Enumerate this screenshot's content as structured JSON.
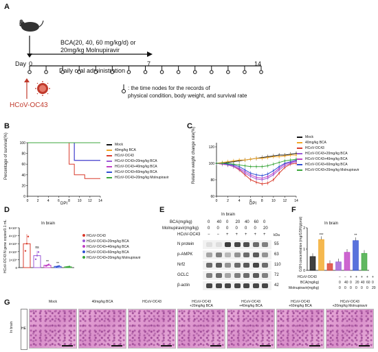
{
  "panels": {
    "A": {
      "letter": "A",
      "treatment_line1": "BCA(20, 40, 60 mg/kg/d) or",
      "treatment_line2": "20mg/kg Molnupiravir",
      "daily": "Daily oral administration",
      "day_label": "Day",
      "day0": "0",
      "day7": "7",
      "day14": "14",
      "virus": "HCoV-OC43",
      "note_line1": ": the time nodes for the records of",
      "note_line2": "physical condition, body weight, and survival rate"
    },
    "B": {
      "letter": "B",
      "ylabel": "Percentage of survival(%)",
      "xlabel": "DPI",
      "yticks": [
        "0",
        "20",
        "40",
        "60",
        "80",
        "100"
      ],
      "xticks": [
        "0",
        "2",
        "4",
        "6",
        "8",
        "10",
        "12",
        "14"
      ],
      "legend": [
        "Mock",
        "40mg/kg BCA",
        "HCoV-OC43",
        "HCoV-OC43+20mg/kg BCA",
        "HCoV-OC43+40mg/kg BCA",
        "HCoV-OC43+60mg/kg BCA",
        "HCoV-OC43+20mg/kg Molnupiravir"
      ]
    },
    "C": {
      "letter": "C",
      "ylabel": "Relative weight change rate(%)",
      "xlabel": "DPI",
      "yticks": [
        "60",
        "80",
        "100",
        "120"
      ],
      "xticks": [
        "0",
        "2",
        "4",
        "6",
        "8",
        "10",
        "12",
        "14"
      ],
      "legend": [
        "Mock",
        "40mg/kg BCA",
        "HCoV-OC43",
        "HCoV-OC43+20mg/kg BCA",
        "HCoV-OC43+40mg/kg BCA",
        "HCoV-OC43+60mg/kg BCA",
        "HCoV-OC43+20mg/kg Molnupiravir"
      ]
    },
    "D": {
      "letter": "D",
      "title": "In brain",
      "ylabel": "HCoV-OC43 N gene copies/0.1 mL",
      "yticks": [
        "0",
        "1×10⁴",
        "2×10⁴",
        "3×10⁴",
        "4×10⁴",
        "5×10⁴"
      ],
      "annot": [
        "ns",
        "**",
        "**"
      ],
      "legend": [
        "HCoV-OC43",
        "HCoV-OC43+20mg/kg BCA",
        "HCoV-OC43+40mg/kg BCA",
        "HCoV-OC43+60mg/kg BCA",
        "HCoV-OC43+20mg/kg Molnupiravir"
      ]
    },
    "E": {
      "letter": "E",
      "title": "In brain",
      "row_bca": "BCA(mg/kg)",
      "row_mol": "Molnupiravir(mg/kg)",
      "row_virus": "HCoV-OC43",
      "bca_values": [
        "0",
        "40",
        "0",
        "20",
        "40",
        "60",
        "0"
      ],
      "mol_values": [
        "0",
        "0",
        "0",
        "0",
        "0",
        "0",
        "20"
      ],
      "virus_values": [
        "−",
        "−",
        "+",
        "+",
        "+",
        "+",
        "+"
      ],
      "kda": "kDa",
      "proteins": [
        {
          "name": "N protein",
          "kda": "55"
        },
        {
          "name": "p-AMPK",
          "kda": "63"
        },
        {
          "name": "Nrf2",
          "kda": "110"
        },
        {
          "name": "GCLC",
          "kda": "72"
        },
        {
          "name": "β-actin",
          "kda": "42"
        }
      ]
    },
    "F": {
      "letter": "F",
      "title": "In brain",
      "ylabel": "GSH concentration (mg/GSH/g/prot)",
      "yticks": [
        "0",
        "1",
        "2"
      ],
      "annot": [
        "***",
        "**"
      ],
      "row_virus": "HCoV-OC43",
      "row_bca": "BCA(mg/kg)",
      "row_mol": "Molnupiravir(mg/kg)",
      "virus_values": [
        "−",
        "−",
        "+",
        "+",
        "+",
        "+",
        "+"
      ],
      "bca_values": [
        "0",
        "40",
        "0",
        "20",
        "40",
        "60",
        "0"
      ],
      "mol_values": [
        "0",
        "0",
        "0",
        "0",
        "0",
        "0",
        "20"
      ]
    },
    "G": {
      "letter": "G",
      "side_label": "In brain",
      "stain": "HE",
      "columns": [
        "Mock",
        "40mg/kg BCA",
        "HCoV-OC43",
        "HCoV-OC43\n+20mg/kg BCA",
        "HCoV-OC43\n+40mg/kg BCA",
        "HCoV-OC43\n+60mg/kg BCA",
        "HCoV-OC43\n+20mg/kg Molnupiravir"
      ]
    }
  },
  "colors": {
    "mock": "#111111",
    "bca40": "#f2a623",
    "virus": "#d93a2b",
    "bca20": "#9b59d6",
    "bca40v": "#c03fc4",
    "bca60": "#2f4fd3",
    "mol": "#3aa63a"
  },
  "chart_data": [
    {
      "panel": "B",
      "type": "line",
      "xlabel": "DPI",
      "ylabel": "Percentage of survival(%)",
      "xlim": [
        0,
        14
      ],
      "ylim": [
        0,
        100
      ],
      "series": [
        {
          "name": "Mock",
          "x": [
            0,
            14
          ],
          "y": [
            100,
            100
          ]
        },
        {
          "name": "40mg/kg BCA",
          "x": [
            0,
            14
          ],
          "y": [
            100,
            100
          ]
        },
        {
          "name": "HCoV-OC43",
          "x": [
            0,
            8,
            8,
            9,
            9,
            11,
            11,
            14
          ],
          "y": [
            100,
            100,
            60,
            60,
            40,
            40,
            33,
            33
          ]
        },
        {
          "name": "HCoV-OC43+20mg/kg BCA",
          "x": [
            0,
            9,
            9,
            14
          ],
          "y": [
            100,
            100,
            67,
            67
          ]
        },
        {
          "name": "HCoV-OC43+40mg/kg BCA",
          "x": [
            0,
            9,
            9,
            14
          ],
          "y": [
            100,
            100,
            67,
            67
          ]
        },
        {
          "name": "HCoV-OC43+60mg/kg BCA",
          "x": [
            0,
            9,
            9,
            14
          ],
          "y": [
            100,
            100,
            67,
            67
          ]
        },
        {
          "name": "HCoV-OC43+20mg/kg Molnupiravir",
          "x": [
            0,
            14
          ],
          "y": [
            100,
            100
          ]
        }
      ]
    },
    {
      "panel": "C",
      "type": "line",
      "xlabel": "DPI",
      "ylabel": "Relative weight change rate(%)",
      "xlim": [
        0,
        14
      ],
      "ylim": [
        60,
        125
      ],
      "x": [
        0,
        1,
        2,
        3,
        4,
        5,
        6,
        7,
        8,
        9,
        10,
        11,
        12,
        13,
        14
      ],
      "series": [
        {
          "name": "Mock",
          "values": [
            100,
            100,
            101,
            102,
            103,
            104,
            105,
            106,
            107,
            108,
            109,
            110,
            110,
            111,
            112
          ]
        },
        {
          "name": "40mg/kg BCA",
          "values": [
            100,
            101,
            102,
            103,
            104,
            104,
            105,
            106,
            106,
            107,
            108,
            108,
            109,
            110,
            110
          ]
        },
        {
          "name": "HCoV-OC43",
          "values": [
            100,
            99,
            98,
            96,
            92,
            86,
            80,
            77,
            75,
            76,
            80,
            88,
            95,
            99,
            100
          ]
        },
        {
          "name": "HCoV-OC43+20mg/kg BCA",
          "values": [
            100,
            99,
            98,
            96,
            93,
            88,
            84,
            81,
            80,
            82,
            86,
            92,
            97,
            100,
            102
          ]
        },
        {
          "name": "HCoV-OC43+40mg/kg BCA",
          "values": [
            100,
            99,
            99,
            97,
            94,
            90,
            86,
            83,
            82,
            84,
            88,
            94,
            99,
            101,
            103
          ]
        },
        {
          "name": "HCoV-OC43+60mg/kg BCA",
          "values": [
            100,
            100,
            99,
            98,
            96,
            92,
            88,
            86,
            85,
            87,
            91,
            96,
            100,
            102,
            104
          ]
        },
        {
          "name": "HCoV-OC43+20mg/kg Molnupiravir",
          "values": [
            100,
            100,
            100,
            99,
            98,
            97,
            96,
            96,
            96,
            97,
            99,
            101,
            103,
            104,
            105
          ]
        }
      ]
    },
    {
      "panel": "D",
      "type": "bar",
      "ylabel": "HCoV-OC43 N gene copies/0.1 mL",
      "ylim": [
        0,
        50000
      ],
      "categories": [
        "HCoV-OC43",
        "HCoV-OC43+20mg/kg BCA",
        "HCoV-OC43+40mg/kg BCA",
        "HCoV-OC43+60mg/kg BCA",
        "HCoV-OC43+20mg/kg Molnupiravir"
      ],
      "values": [
        30000,
        15000,
        3000,
        1500,
        1000
      ]
    },
    {
      "panel": "F",
      "type": "bar",
      "ylabel": "GSH concentration (mg/GSH/g/prot)",
      "ylim": [
        0,
        2
      ],
      "categories": [
        "1",
        "2",
        "3",
        "4",
        "5",
        "6",
        "7"
      ],
      "values": [
        0.65,
        1.45,
        0.32,
        0.4,
        0.85,
        1.4,
        0.8
      ]
    }
  ]
}
